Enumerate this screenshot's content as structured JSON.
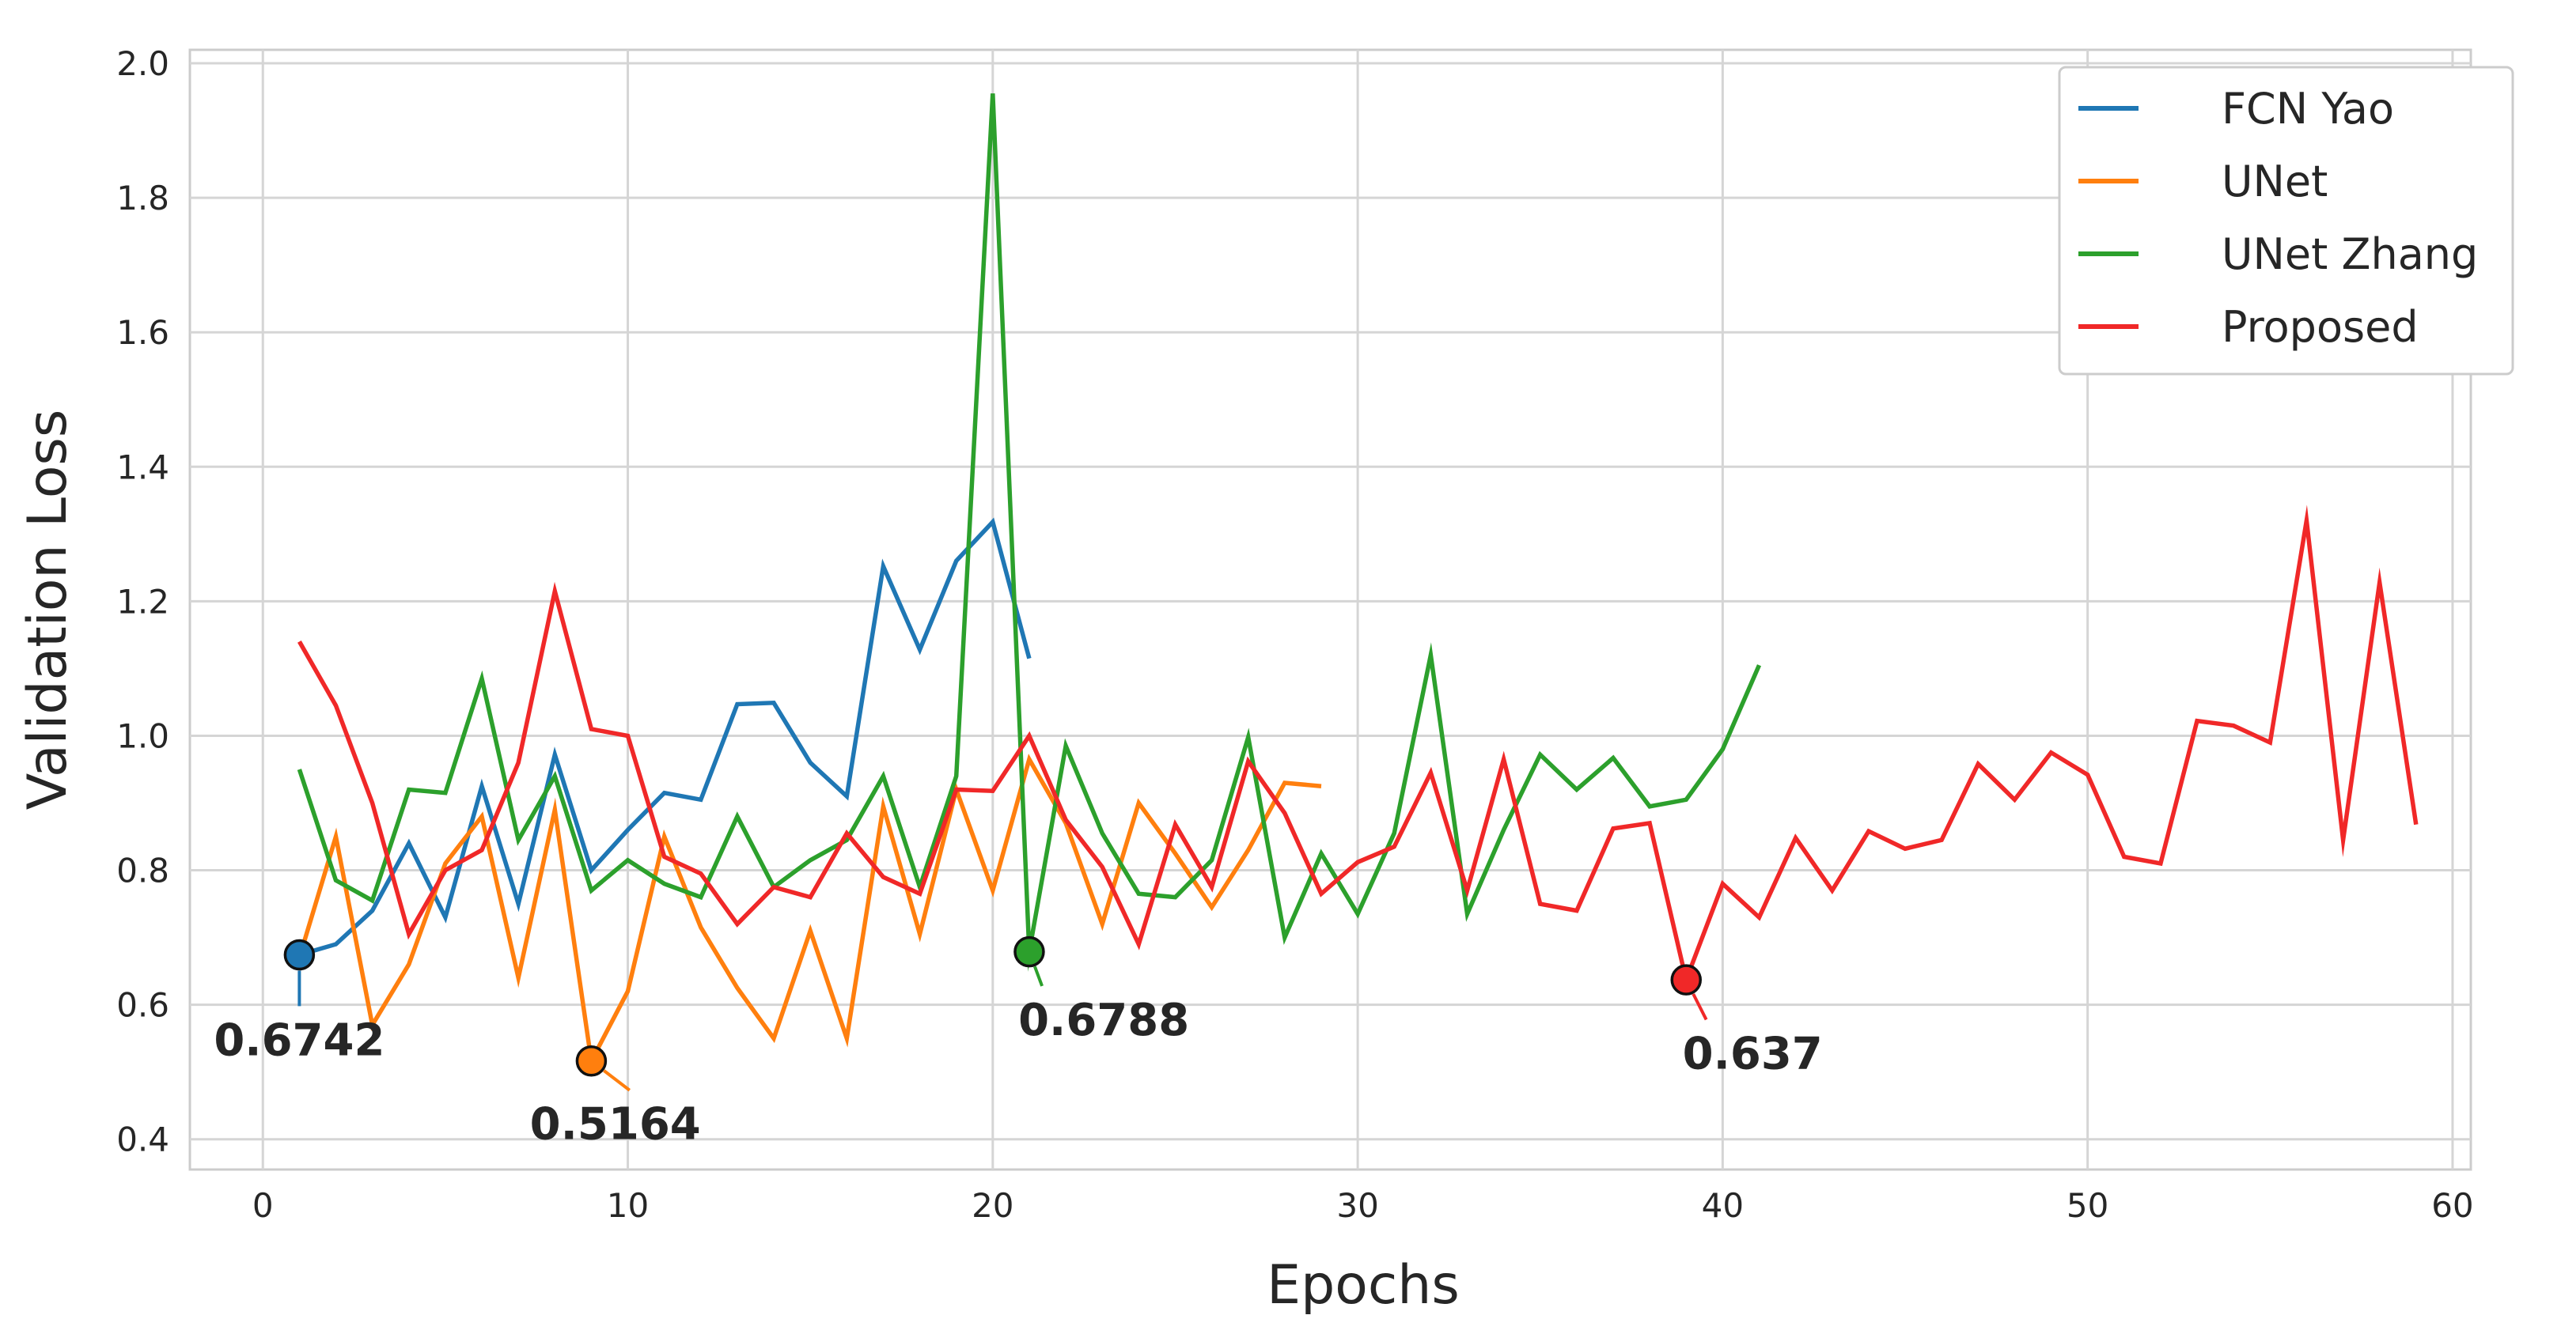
{
  "chart_data": {
    "type": "line",
    "xlabel": "Epochs",
    "ylabel": "Validation Loss",
    "xlim": [
      -2,
      60.5
    ],
    "ylim": [
      0.355,
      2.02
    ],
    "xticks": [
      0,
      10,
      20,
      30,
      40,
      50,
      60
    ],
    "yticks": [
      0.4,
      0.6,
      0.8,
      1.0,
      1.2,
      1.4,
      1.6,
      1.8,
      2.0
    ],
    "xtick_labels": [
      "0",
      "10",
      "20",
      "30",
      "40",
      "50",
      "60"
    ],
    "ytick_labels": [
      "0.4",
      "0.6",
      "0.8",
      "1.0",
      "1.2",
      "1.4",
      "1.6",
      "1.8",
      "2.0"
    ],
    "grid": true,
    "legend_position": "top-right",
    "series": [
      {
        "name": "FCN Yao",
        "color": "#1f77b4",
        "x": [
          1,
          2,
          3,
          4,
          5,
          6,
          7,
          8,
          9,
          10,
          11,
          12,
          13,
          14,
          15,
          16,
          17,
          18,
          19,
          20,
          21
        ],
        "values": [
          0.6742,
          0.69,
          0.74,
          0.84,
          0.73,
          0.925,
          0.75,
          0.972,
          0.8,
          0.86,
          0.915,
          0.905,
          1.047,
          1.049,
          0.96,
          0.91,
          1.252,
          1.128,
          1.26,
          1.318,
          1.115
        ]
      },
      {
        "name": "UNet",
        "color": "#ff7f0e",
        "x": [
          1,
          2,
          3,
          4,
          5,
          6,
          7,
          8,
          9,
          10,
          11,
          12,
          13,
          14,
          15,
          16,
          17,
          18,
          19,
          20,
          21,
          22,
          23,
          24,
          25,
          26,
          27,
          28,
          29
        ],
        "values": [
          0.67,
          0.85,
          0.57,
          0.66,
          0.81,
          0.88,
          0.64,
          0.89,
          0.5164,
          0.62,
          0.85,
          0.715,
          0.625,
          0.55,
          0.71,
          0.55,
          0.895,
          0.705,
          0.92,
          0.77,
          0.965,
          0.87,
          0.72,
          0.9,
          0.825,
          0.745,
          0.83,
          0.93,
          0.925
        ]
      },
      {
        "name": "UNet Zhang",
        "color": "#2ca02c",
        "x": [
          1,
          2,
          3,
          4,
          5,
          6,
          7,
          8,
          9,
          10,
          11,
          12,
          13,
          14,
          15,
          16,
          17,
          18,
          19,
          20,
          21,
          22,
          23,
          24,
          25,
          26,
          27,
          28,
          29,
          30,
          31,
          32,
          33,
          34,
          35,
          36,
          37,
          38,
          39,
          40,
          41
        ],
        "values": [
          0.95,
          0.785,
          0.755,
          0.92,
          0.915,
          1.085,
          0.845,
          0.94,
          0.77,
          0.815,
          0.78,
          0.76,
          0.88,
          0.775,
          0.815,
          0.845,
          0.94,
          0.775,
          0.94,
          1.955,
          0.6788,
          0.985,
          0.855,
          0.765,
          0.76,
          0.815,
          0.998,
          0.7,
          0.825,
          0.735,
          0.855,
          1.12,
          0.735,
          0.86,
          0.972,
          0.92,
          0.967,
          0.895,
          0.905,
          0.98,
          1.105
        ]
      },
      {
        "name": "Proposed",
        "color": "#f02828",
        "x": [
          1,
          2,
          3,
          4,
          5,
          6,
          7,
          8,
          9,
          10,
          11,
          12,
          13,
          14,
          15,
          16,
          17,
          18,
          19,
          20,
          21,
          22,
          23,
          24,
          25,
          26,
          27,
          28,
          29,
          30,
          31,
          32,
          33,
          34,
          35,
          36,
          37,
          38,
          39,
          40,
          41,
          42,
          43,
          44,
          45,
          46,
          47,
          48,
          49,
          50,
          51,
          52,
          53,
          54,
          55,
          56,
          57,
          58,
          59
        ],
        "values": [
          1.14,
          1.045,
          0.9,
          0.705,
          0.8,
          0.83,
          0.96,
          1.215,
          1.01,
          1.0,
          0.82,
          0.795,
          0.72,
          0.775,
          0.76,
          0.855,
          0.79,
          0.765,
          0.92,
          0.918,
          1.0,
          0.875,
          0.805,
          0.69,
          0.868,
          0.775,
          0.962,
          0.885,
          0.765,
          0.812,
          0.835,
          0.945,
          0.77,
          0.965,
          0.75,
          0.74,
          0.862,
          0.87,
          0.637,
          0.78,
          0.73,
          0.848,
          0.77,
          0.858,
          0.832,
          0.845,
          0.958,
          0.905,
          0.975,
          0.942,
          0.82,
          0.81,
          1.022,
          1.015,
          0.99,
          1.32,
          0.845,
          1.228,
          0.868
        ]
      }
    ],
    "annotations": [
      {
        "series": "FCN Yao",
        "x": 1,
        "y": 0.6742,
        "label": "0.6742",
        "text_x": 1,
        "text_y": 0.525,
        "anchor": "middle"
      },
      {
        "series": "UNet",
        "x": 9,
        "y": 0.5164,
        "label": "0.5164",
        "text_x": 12,
        "text_y": 0.4,
        "anchor": "end"
      },
      {
        "series": "UNet Zhang",
        "x": 21,
        "y": 0.6788,
        "label": "0.6788",
        "text_x": 20.7,
        "text_y": 0.555,
        "anchor": "start"
      },
      {
        "series": "Proposed",
        "x": 39,
        "y": 0.637,
        "label": "0.637",
        "text_x": 38.9,
        "text_y": 0.505,
        "anchor": "start"
      }
    ]
  }
}
